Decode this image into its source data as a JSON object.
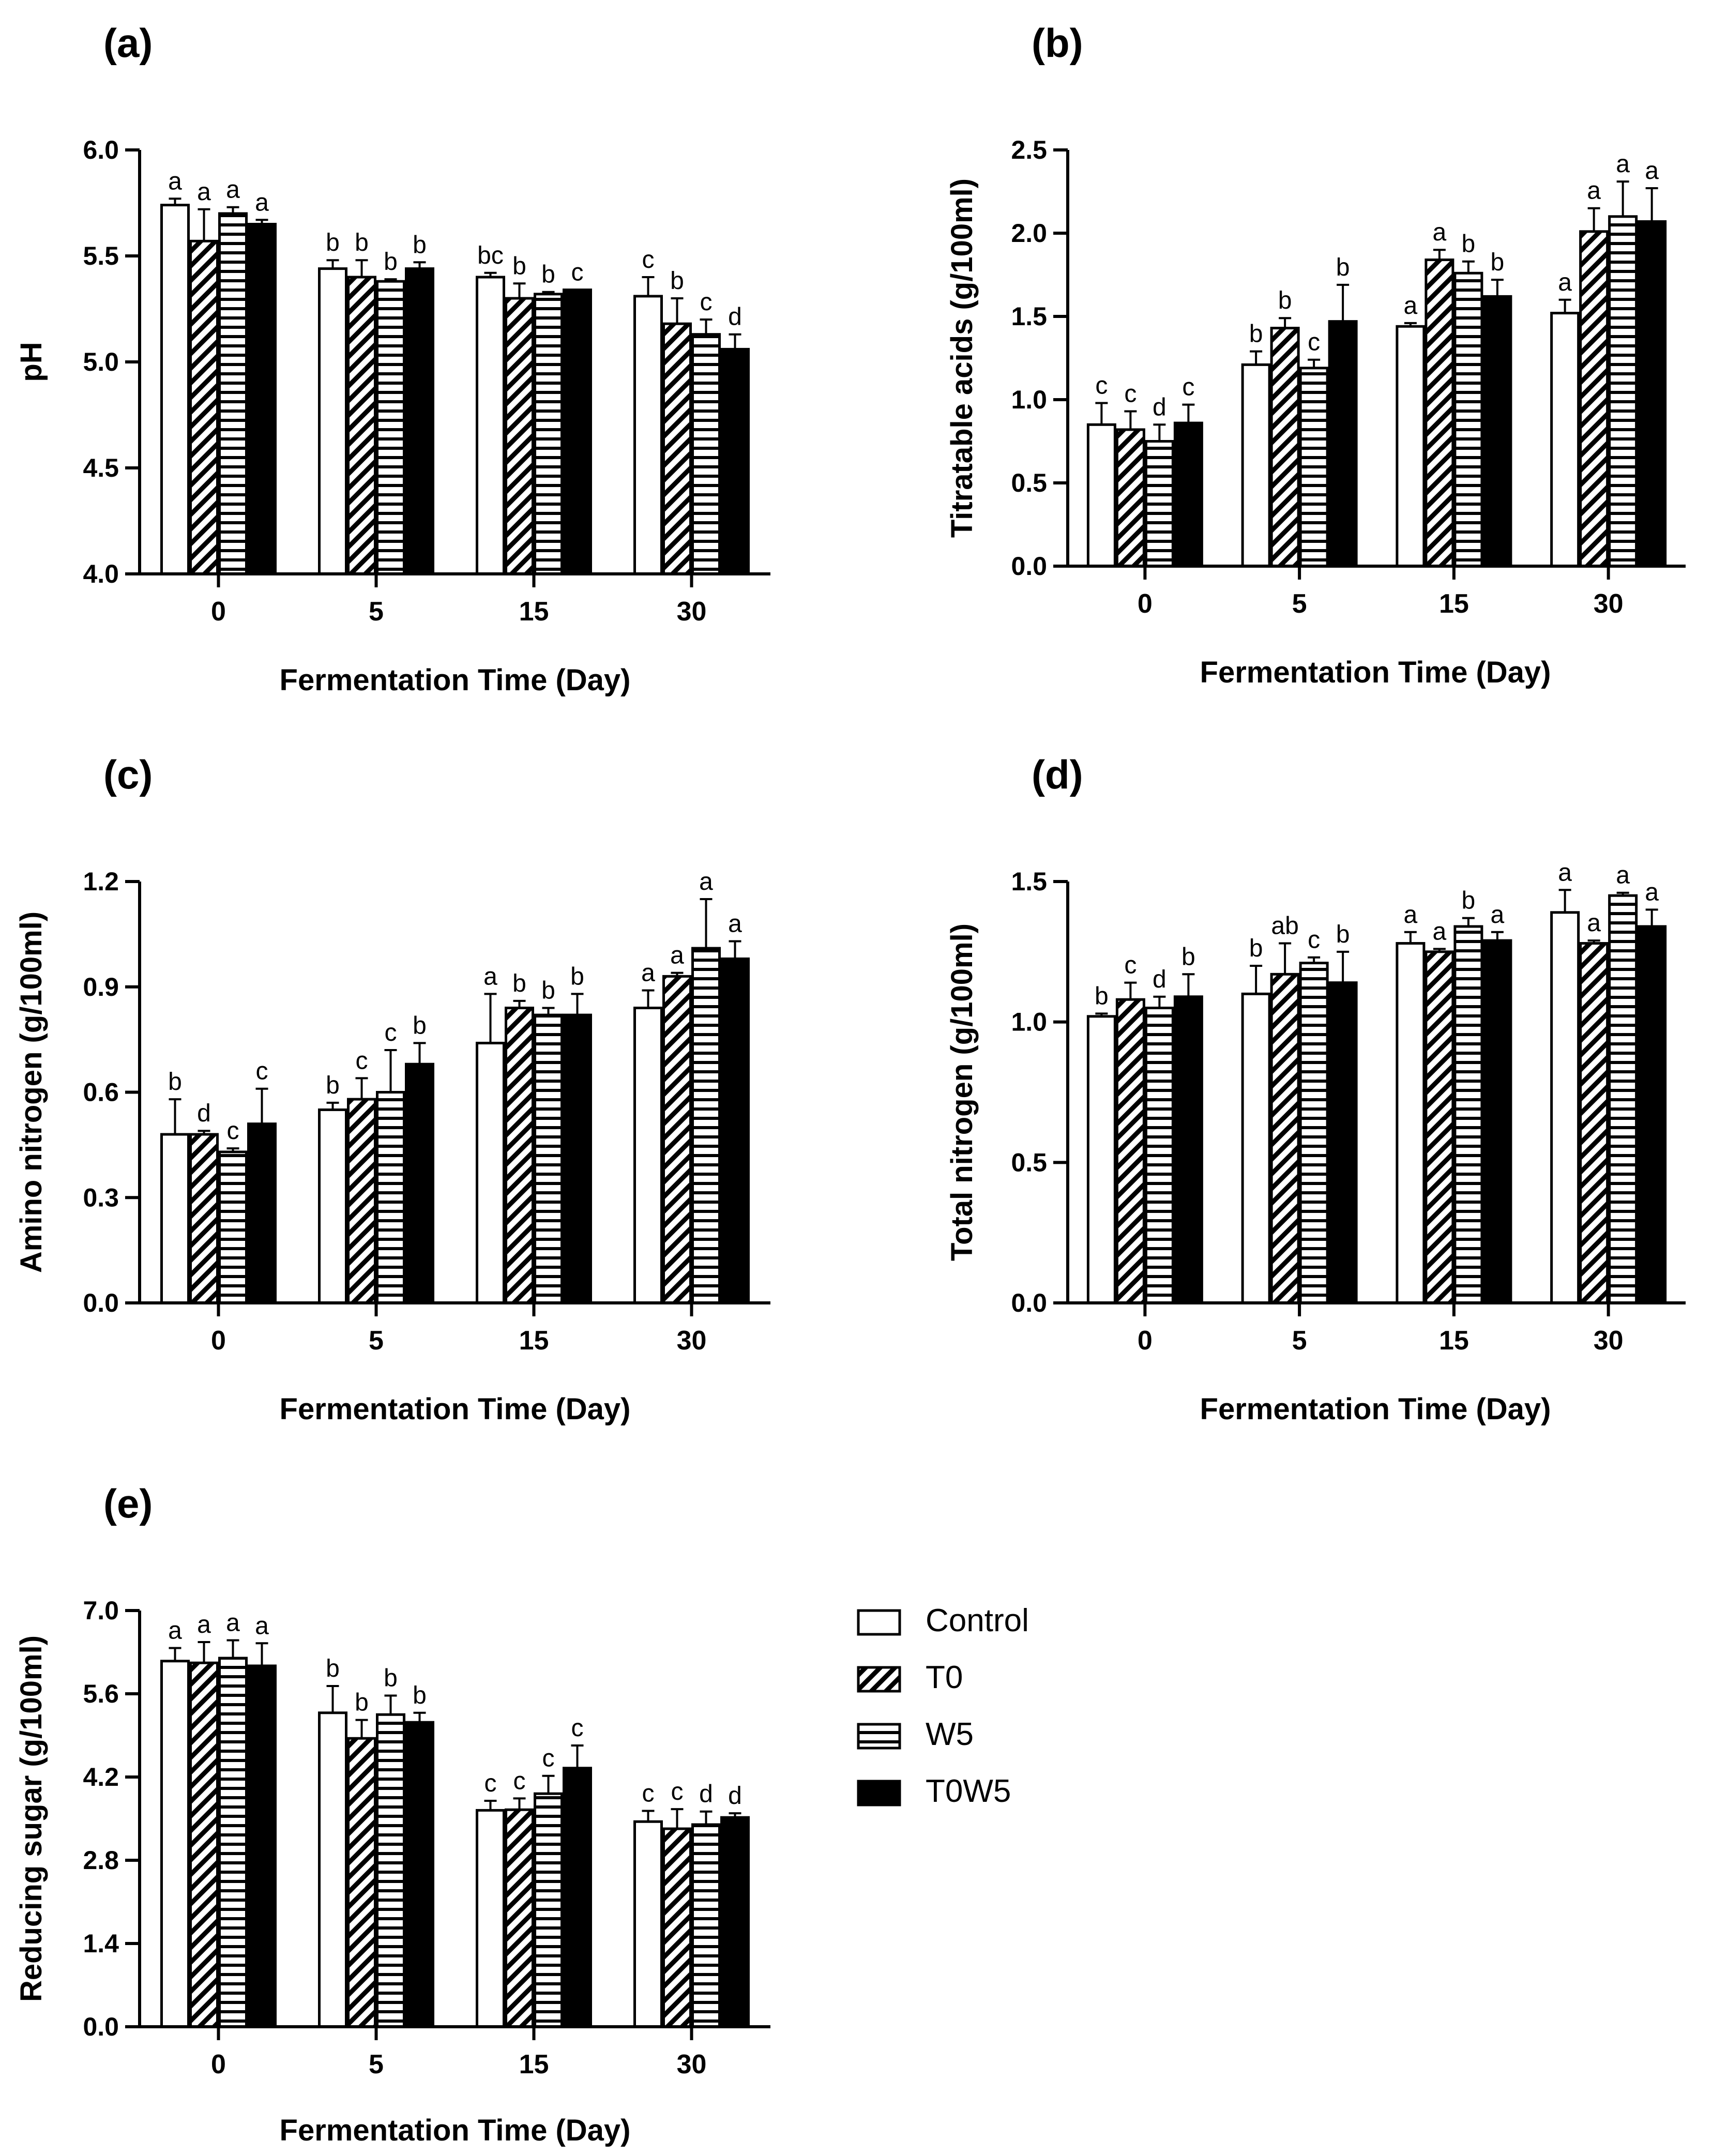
{
  "figure": {
    "legend": {
      "entries": [
        {
          "name": "Control",
          "pattern": "open"
        },
        {
          "name": "T0",
          "pattern": "diagonal"
        },
        {
          "name": "W5",
          "pattern": "horizontal"
        },
        {
          "name": "T0W5",
          "pattern": "solid"
        }
      ]
    }
  },
  "chart_data": [
    {
      "panel": "(a)",
      "type": "bar",
      "xlabel": "Fermentation Time (Day)",
      "ylabel": "pH",
      "categories": [
        "0",
        "5",
        "15",
        "30"
      ],
      "ylim": [
        4.0,
        6.0
      ],
      "yticks": [
        "4.0",
        "4.5",
        "5.0",
        "5.5",
        "6.0"
      ],
      "series": [
        {
          "name": "Control",
          "values": [
            5.74,
            5.44,
            5.4,
            5.31
          ],
          "errors": [
            0.03,
            0.04,
            0.02,
            0.09
          ],
          "letters": [
            "a",
            "b",
            "bc",
            "c"
          ]
        },
        {
          "name": "T0",
          "values": [
            5.57,
            5.4,
            5.3,
            5.18
          ],
          "errors": [
            0.15,
            0.08,
            0.07,
            0.12
          ],
          "letters": [
            "a",
            "b",
            "b",
            "b"
          ]
        },
        {
          "name": "W5",
          "values": [
            5.7,
            5.38,
            5.32,
            5.13
          ],
          "errors": [
            0.03,
            0.01,
            0.01,
            0.07
          ],
          "letters": [
            "a",
            "b",
            "b",
            "c"
          ]
        },
        {
          "name": "T0W5",
          "values": [
            5.65,
            5.44,
            5.34,
            5.06
          ],
          "errors": [
            0.02,
            0.03,
            0.0,
            0.07
          ],
          "letters": [
            "a",
            "b",
            "c",
            "d"
          ]
        }
      ]
    },
    {
      "panel": "(b)",
      "type": "bar",
      "xlabel": "Fermentation Time (Day)",
      "ylabel": "Titratable acids (g/100ml)",
      "categories": [
        "0",
        "5",
        "15",
        "30"
      ],
      "ylim": [
        0.0,
        2.5
      ],
      "yticks": [
        "0.0",
        "0.5",
        "1.0",
        "1.5",
        "2.0",
        "2.5"
      ],
      "series": [
        {
          "name": "Control",
          "values": [
            0.85,
            1.21,
            1.44,
            1.52
          ],
          "errors": [
            0.13,
            0.08,
            0.02,
            0.08
          ],
          "letters": [
            "c",
            "b",
            "a",
            "a"
          ]
        },
        {
          "name": "T0",
          "values": [
            0.82,
            1.43,
            1.84,
            2.01
          ],
          "errors": [
            0.11,
            0.06,
            0.06,
            0.14
          ],
          "letters": [
            "c",
            "b",
            "a",
            "a"
          ]
        },
        {
          "name": "W5",
          "values": [
            0.75,
            1.19,
            1.76,
            2.1
          ],
          "errors": [
            0.1,
            0.05,
            0.07,
            0.21
          ],
          "letters": [
            "d",
            "c",
            "b",
            "a"
          ]
        },
        {
          "name": "T0W5",
          "values": [
            0.86,
            1.47,
            1.62,
            2.07
          ],
          "errors": [
            0.11,
            0.22,
            0.1,
            0.2
          ],
          "letters": [
            "c",
            "b",
            "b",
            "a"
          ]
        }
      ]
    },
    {
      "panel": "(c)",
      "type": "bar",
      "xlabel": "Fermentation Time (Day)",
      "ylabel": "Amino nitrogen (g/100ml)",
      "categories": [
        "0",
        "5",
        "15",
        "30"
      ],
      "ylim": [
        0.0,
        1.2
      ],
      "yticks": [
        "0.0",
        "0.3",
        "0.6",
        "0.9",
        "1.2"
      ],
      "series": [
        {
          "name": "Control",
          "values": [
            0.48,
            0.55,
            0.74,
            0.84
          ],
          "errors": [
            0.1,
            0.02,
            0.14,
            0.05
          ],
          "letters": [
            "b",
            "b",
            "a",
            "a"
          ]
        },
        {
          "name": "T0",
          "values": [
            0.48,
            0.58,
            0.84,
            0.93
          ],
          "errors": [
            0.01,
            0.06,
            0.02,
            0.01
          ],
          "letters": [
            "d",
            "c",
            "b",
            "a"
          ]
        },
        {
          "name": "W5",
          "values": [
            0.43,
            0.6,
            0.82,
            1.01
          ],
          "errors": [
            0.01,
            0.12,
            0.02,
            0.14
          ],
          "letters": [
            "c",
            "c",
            "b",
            "a"
          ]
        },
        {
          "name": "T0W5",
          "values": [
            0.51,
            0.68,
            0.82,
            0.98
          ],
          "errors": [
            0.1,
            0.06,
            0.06,
            0.05
          ],
          "letters": [
            "c",
            "b",
            "b",
            "a"
          ]
        }
      ]
    },
    {
      "panel": "(d)",
      "type": "bar",
      "xlabel": "Fermentation Time (Day)",
      "ylabel": "Total nitrogen (g/100ml)",
      "categories": [
        "0",
        "5",
        "15",
        "30"
      ],
      "ylim": [
        0.0,
        1.5
      ],
      "yticks": [
        "0.0",
        "0.5",
        "1.0",
        "1.5"
      ],
      "series": [
        {
          "name": "Control",
          "values": [
            1.02,
            1.1,
            1.28,
            1.39
          ],
          "errors": [
            0.01,
            0.1,
            0.04,
            0.08
          ],
          "letters": [
            "b",
            "b",
            "a",
            "a"
          ]
        },
        {
          "name": "T0",
          "values": [
            1.08,
            1.17,
            1.25,
            1.28
          ],
          "errors": [
            0.06,
            0.11,
            0.01,
            0.01
          ],
          "letters": [
            "c",
            "ab",
            "a",
            "a"
          ]
        },
        {
          "name": "W5",
          "values": [
            1.05,
            1.21,
            1.34,
            1.45
          ],
          "errors": [
            0.04,
            0.02,
            0.03,
            0.01
          ],
          "letters": [
            "d",
            "c",
            "b",
            "a"
          ]
        },
        {
          "name": "T0W5",
          "values": [
            1.09,
            1.14,
            1.29,
            1.34
          ],
          "errors": [
            0.08,
            0.11,
            0.03,
            0.06
          ],
          "letters": [
            "b",
            "b",
            "a",
            "a"
          ]
        }
      ]
    },
    {
      "panel": "(e)",
      "type": "bar",
      "xlabel": "Fermentation Time (Day)",
      "ylabel": "Reducing sugar (g/100ml)",
      "categories": [
        "0",
        "5",
        "15",
        "30"
      ],
      "ylim": [
        0.0,
        7.0
      ],
      "yticks": [
        "0.0",
        "1.4",
        "2.8",
        "4.2",
        "5.6",
        "7.0"
      ],
      "series": [
        {
          "name": "Control",
          "values": [
            6.15,
            5.28,
            3.64,
            3.45
          ],
          "errors": [
            0.22,
            0.45,
            0.16,
            0.18
          ],
          "letters": [
            "a",
            "b",
            "c",
            "c"
          ]
        },
        {
          "name": "T0",
          "values": [
            6.12,
            4.85,
            3.65,
            3.33
          ],
          "errors": [
            0.35,
            0.31,
            0.19,
            0.33
          ],
          "letters": [
            "a",
            "b",
            "c",
            "c"
          ]
        },
        {
          "name": "W5",
          "values": [
            6.2,
            5.25,
            3.92,
            3.4
          ],
          "errors": [
            0.3,
            0.32,
            0.3,
            0.22
          ],
          "letters": [
            "a",
            "b",
            "c",
            "d"
          ]
        },
        {
          "name": "T0W5",
          "values": [
            6.07,
            5.12,
            4.35,
            3.52
          ],
          "errors": [
            0.38,
            0.16,
            0.38,
            0.07
          ],
          "letters": [
            "a",
            "b",
            "c",
            "d"
          ]
        }
      ]
    }
  ]
}
